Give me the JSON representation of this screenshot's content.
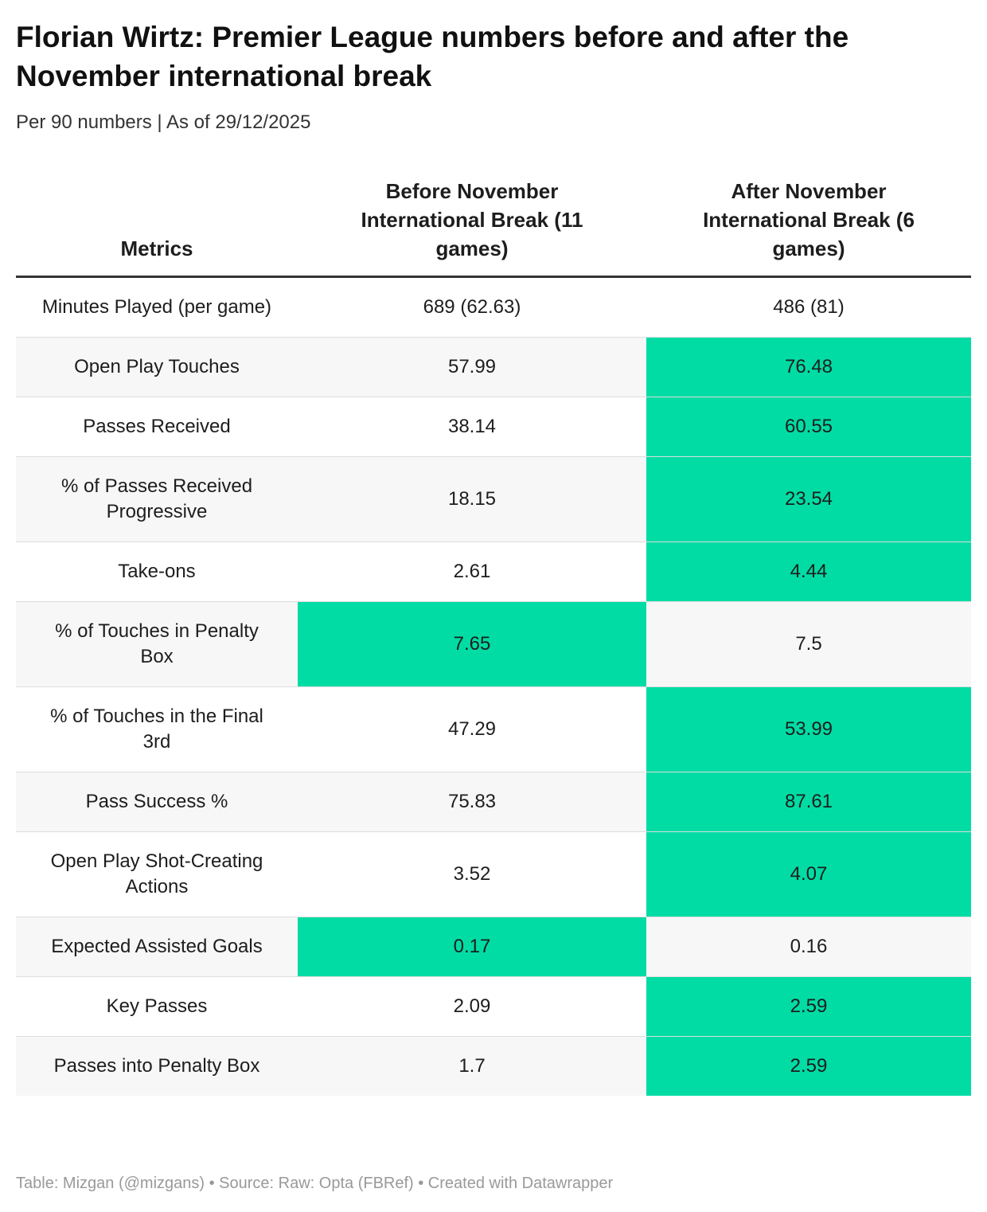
{
  "header": {
    "title": "Florian Wirtz: Premier League numbers before and after the November international break",
    "subtitle": "Per 90 numbers | As of 29/12/2025"
  },
  "table": {
    "columns": [
      "Metrics",
      "Before November International Break (11 games)",
      "After November International Break (6 games)"
    ],
    "highlight_color": "#00dca4",
    "rows": [
      {
        "cells": [
          "Minutes Played (per game)",
          "689 (62.63)",
          "486 (81)"
        ],
        "highlight": null
      },
      {
        "cells": [
          "Open Play Touches",
          "57.99",
          "76.48"
        ],
        "highlight": 2
      },
      {
        "cells": [
          "Passes Received",
          "38.14",
          "60.55"
        ],
        "highlight": 2
      },
      {
        "cells": [
          "% of Passes Received Progressive",
          "18.15",
          "23.54"
        ],
        "highlight": 2
      },
      {
        "cells": [
          "Take-ons",
          "2.61",
          "4.44"
        ],
        "highlight": 2
      },
      {
        "cells": [
          "% of Touches in Penalty Box",
          "7.65",
          "7.5"
        ],
        "highlight": 1
      },
      {
        "cells": [
          "% of Touches in the Final 3rd",
          "47.29",
          "53.99"
        ],
        "highlight": 2
      },
      {
        "cells": [
          "Pass Success %",
          "75.83",
          "87.61"
        ],
        "highlight": 2
      },
      {
        "cells": [
          "Open Play Shot-Creating Actions",
          "3.52",
          "4.07"
        ],
        "highlight": 2
      },
      {
        "cells": [
          "Expected Assisted Goals",
          "0.17",
          "0.16"
        ],
        "highlight": 1
      },
      {
        "cells": [
          "Key Passes",
          "2.09",
          "2.59"
        ],
        "highlight": 2
      },
      {
        "cells": [
          "Passes into Penalty Box",
          "1.7",
          "2.59"
        ],
        "highlight": 2
      }
    ]
  },
  "footer": "Table: Mizgan (@mizgans) • Source: Raw: Opta (FBRef) • Created with Datawrapper"
}
